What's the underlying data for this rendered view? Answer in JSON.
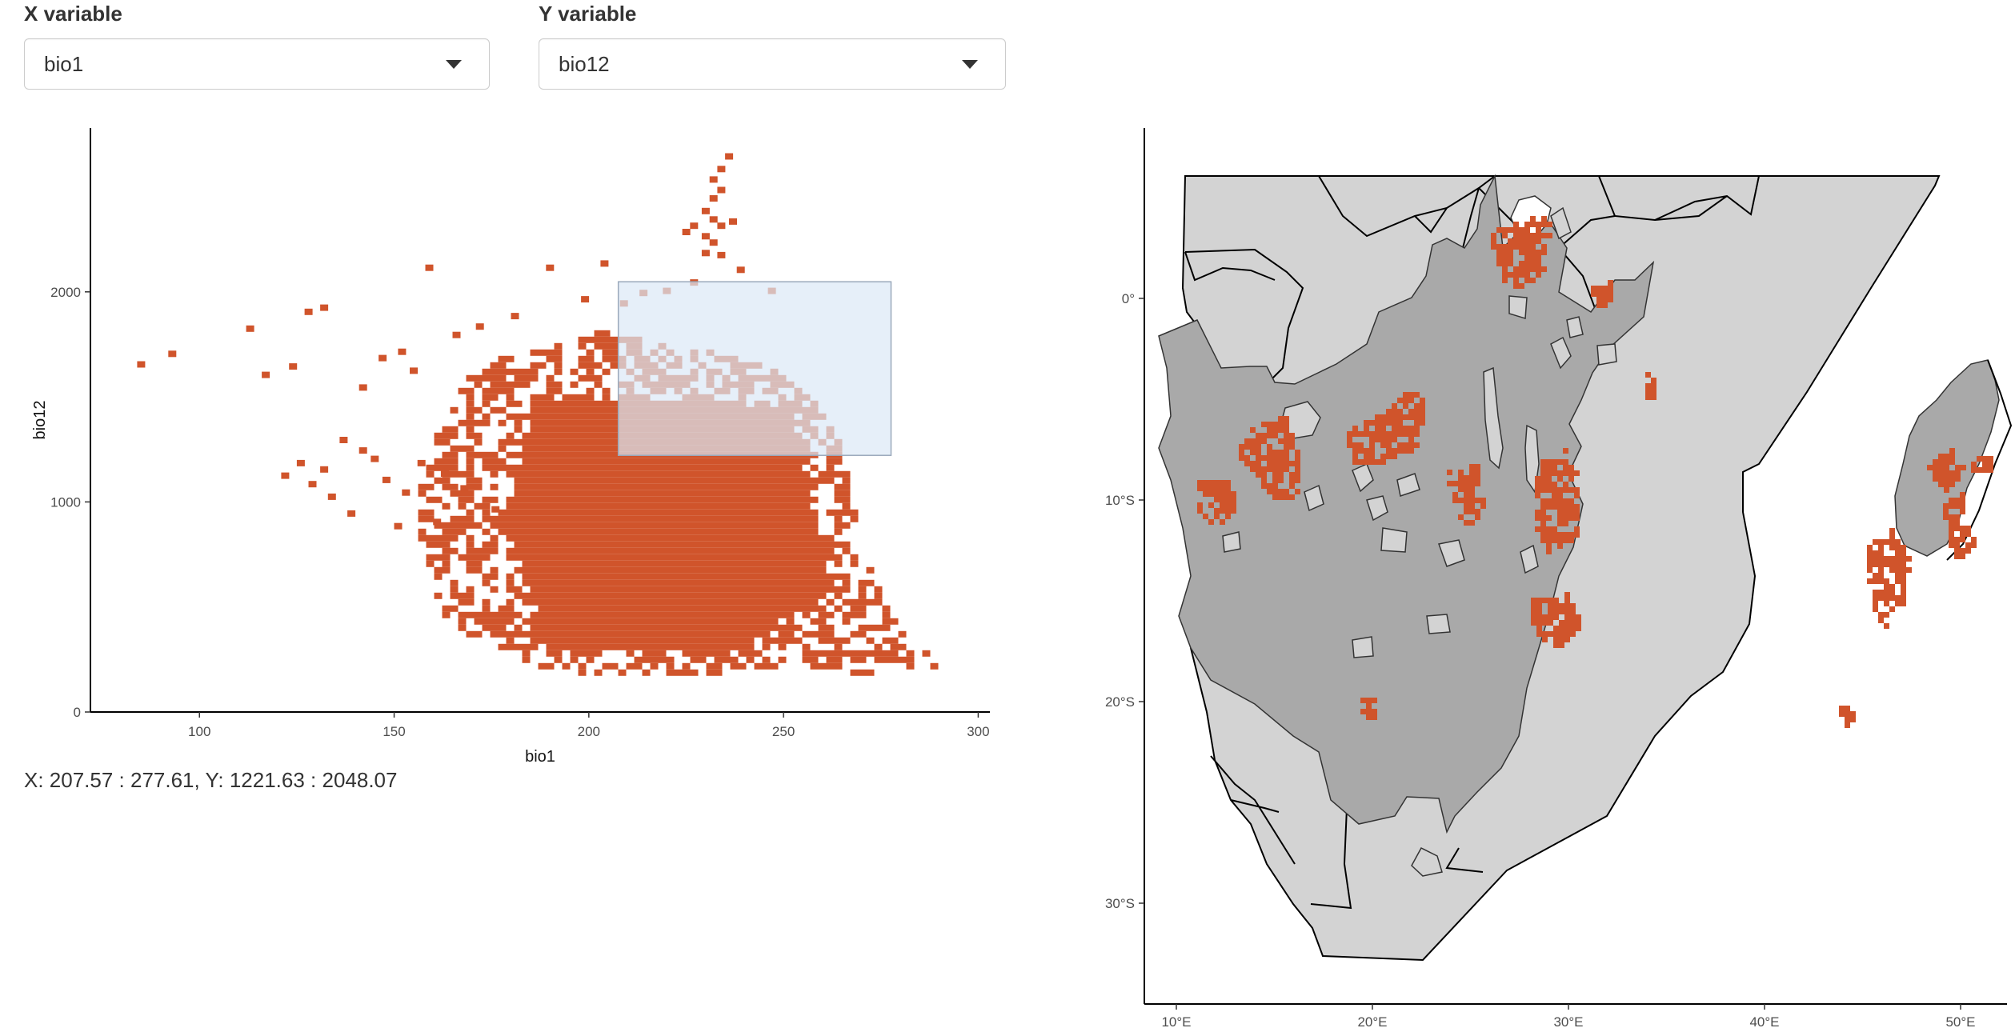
{
  "controls": {
    "x_label": "X variable",
    "x_value": "bio1",
    "y_label": "Y variable",
    "y_value": "bio12"
  },
  "brush_readout": "X: 207.57 : 277.61, Y: 1221.63 : 2048.07",
  "colors": {
    "points": "#d0542b",
    "brush_fill": "#dbe8f7",
    "land_light": "#d3d3d3",
    "land_dark": "#a9a9a9"
  },
  "chart_data": [
    {
      "type": "heatmap",
      "title": "",
      "xlabel": "bio1",
      "ylabel": "bio12",
      "xlim": [
        72,
        303
      ],
      "ylim": [
        0,
        2780
      ],
      "x_ticks": [
        100,
        150,
        200,
        250,
        300
      ],
      "y_ticks": [
        0,
        1000,
        2000
      ],
      "brush": {
        "x": [
          207.57,
          277.61
        ],
        "y": [
          1221.63,
          2048.07
        ]
      },
      "stray_cells": [
        [
          84,
          1670
        ],
        [
          92,
          1720
        ],
        [
          112,
          1840
        ],
        [
          116,
          1620
        ],
        [
          123,
          1660
        ],
        [
          127,
          1920
        ],
        [
          131,
          1940
        ],
        [
          141,
          1560
        ],
        [
          146,
          1700
        ],
        [
          151,
          1730
        ],
        [
          154,
          1640
        ],
        [
          158,
          2130
        ],
        [
          165,
          1810
        ],
        [
          171,
          1850
        ],
        [
          180,
          1900
        ],
        [
          189,
          2130
        ],
        [
          198,
          1980
        ],
        [
          203,
          2150
        ],
        [
          208,
          1960
        ],
        [
          213,
          2010
        ],
        [
          219,
          2020
        ],
        [
          226,
          2060
        ],
        [
          238,
          2120
        ],
        [
          246,
          2020
        ],
        [
          125,
          1200
        ],
        [
          131,
          1170
        ],
        [
          136,
          1310
        ],
        [
          141,
          1260
        ],
        [
          147,
          1120
        ],
        [
          152,
          1060
        ],
        [
          156,
          1200
        ],
        [
          162,
          1150
        ],
        [
          167,
          1080
        ],
        [
          144,
          1220
        ],
        [
          121,
          1140
        ],
        [
          175,
          980
        ],
        [
          128,
          1100
        ],
        [
          133,
          1040
        ],
        [
          138,
          960
        ],
        [
          150,
          900
        ],
        [
          160,
          920
        ]
      ],
      "peak_cells": [
        [
          229,
          2400
        ],
        [
          231,
          2460
        ],
        [
          233,
          2500
        ],
        [
          231,
          2550
        ],
        [
          233,
          2600
        ],
        [
          235,
          2660
        ],
        [
          231,
          2360
        ],
        [
          226,
          2330
        ],
        [
          224,
          2300
        ],
        [
          229,
          2280
        ],
        [
          233,
          2330
        ],
        [
          231,
          2250
        ],
        [
          229,
          2200
        ],
        [
          233,
          2190
        ],
        [
          236,
          2350
        ]
      ],
      "main_region": {
        "outline": [
          [
            172,
            1680
          ],
          [
            184,
            1700
          ],
          [
            195,
            1760
          ],
          [
            205,
            1830
          ],
          [
            214,
            1780
          ],
          [
            224,
            1740
          ],
          [
            234,
            1700
          ],
          [
            246,
            1640
          ],
          [
            256,
            1520
          ],
          [
            264,
            1300
          ],
          [
            268,
            1000
          ],
          [
            272,
            700
          ],
          [
            278,
            450
          ],
          [
            286,
            300
          ],
          [
            292,
            200
          ],
          [
            270,
            180
          ],
          [
            250,
            220
          ],
          [
            230,
            170
          ],
          [
            210,
            160
          ],
          [
            190,
            200
          ],
          [
            172,
            320
          ],
          [
            162,
            480
          ],
          [
            158,
            700
          ],
          [
            156,
            1000
          ],
          [
            160,
            1300
          ],
          [
            166,
            1500
          ]
        ]
      },
      "series_note": ""
    },
    {
      "type": "map",
      "x_ticks": [
        "10°E",
        "20°E",
        "30°E",
        "40°E",
        "50°E"
      ],
      "y_ticks": [
        "0°",
        "10°S",
        "20°S",
        "30°S"
      ],
      "xlim": [
        8.5,
        52.5
      ],
      "ylim": [
        -35.5,
        8.0
      ]
    }
  ]
}
